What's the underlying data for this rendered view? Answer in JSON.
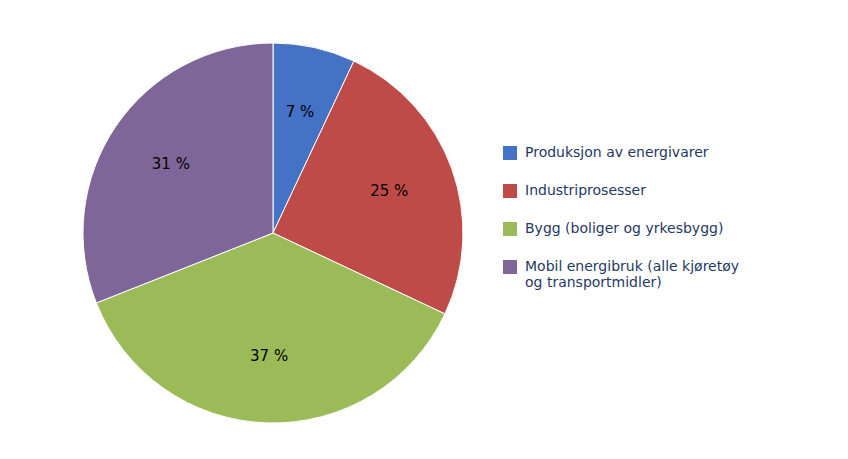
{
  "chart_data": {
    "type": "pie",
    "categories": [
      "Produksjon av energivarer",
      "Industriprosesser",
      "Bygg (boliger og yrkesbygg)",
      "Mobil energibruk (alle kjøretøy\nog transportmidler)"
    ],
    "values": [
      7,
      25,
      37,
      31
    ],
    "value_labels": [
      "7 %",
      "25 %",
      "37 %",
      "31 %"
    ],
    "colors": [
      "#4472C4",
      "#BE4B48",
      "#9BBB59",
      "#7F6699"
    ],
    "data_labels": true,
    "legend": "right"
  }
}
